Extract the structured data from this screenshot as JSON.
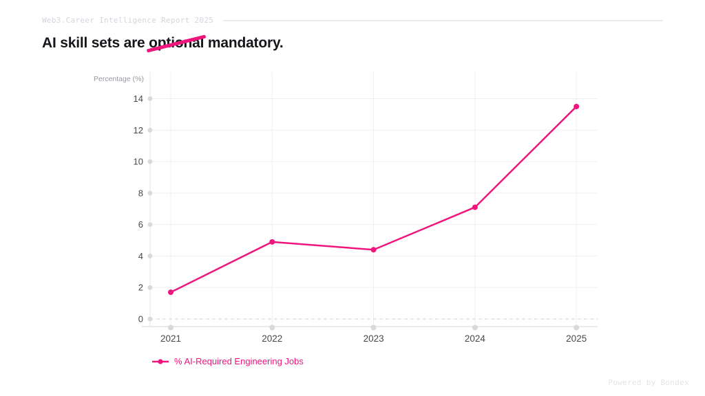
{
  "header": {
    "report_label": "Web3.Career Intelligence Report 2025"
  },
  "title": {
    "text_before": "AI skill sets are ",
    "struck_word": "optional",
    "text_after": " mandatory."
  },
  "footer": {
    "credit": "Powered by Bondex"
  },
  "colors": {
    "accent": "#F0147D",
    "title": "#15161A",
    "header_text": "#D2D6DD",
    "header_line": "#E9EBEF",
    "footer_text": "#E2E4E7",
    "grid": "#EFEFEF",
    "axis_line": "#E3E3E3",
    "y_axis_line": "#EAEAEA",
    "zero_dash": "#DBDBDB",
    "axis_dot": "#D9D9D9",
    "tick_label": "#46484C",
    "axis_title": "#95999F"
  },
  "chart_data": {
    "type": "line",
    "title": "AI skill sets are optional(struck) mandatory.",
    "categories": [
      "2021",
      "2022",
      "2023",
      "2024",
      "2025"
    ],
    "series": [
      {
        "name": "% AI-Required Engineering Jobs",
        "values": [
          1.7,
          4.9,
          4.4,
          7.1,
          13.5
        ],
        "color": "#F0147D"
      }
    ],
    "xlabel": "",
    "ylabel": "Percentage (%)",
    "yticks": [
      0,
      2,
      4,
      6,
      8,
      10,
      12,
      14
    ],
    "ylim": [
      0,
      14
    ],
    "grid": true,
    "zero_gridline_style": "dashed",
    "legend_position": "bottom-left"
  }
}
